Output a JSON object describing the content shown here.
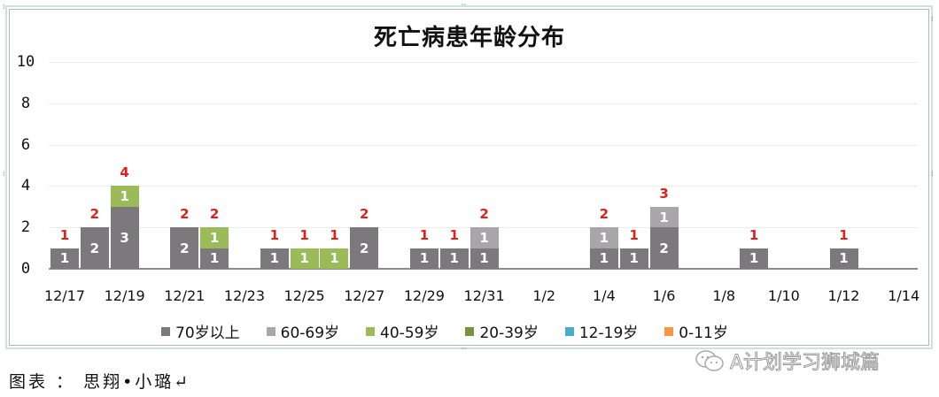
{
  "chart_data": {
    "type": "bar",
    "stacked": true,
    "title": "死亡病患年龄分布",
    "xlabel": "",
    "ylabel": "",
    "ylim": [
      0,
      10
    ],
    "yticks": [
      0,
      2,
      4,
      6,
      8,
      10
    ],
    "grid": true,
    "legend_position": "bottom",
    "categories": [
      "12/17",
      "12/18",
      "12/19",
      "12/20",
      "12/21",
      "12/22",
      "12/23",
      "12/24",
      "12/25",
      "12/26",
      "12/27",
      "12/28",
      "12/29",
      "12/30",
      "12/31",
      "1/1",
      "1/2",
      "1/3",
      "1/4",
      "1/5",
      "1/6",
      "1/7",
      "1/8",
      "1/9",
      "1/10",
      "1/11",
      "1/12",
      "1/13",
      "1/14"
    ],
    "xtick_labels": [
      "12/17",
      "12/19",
      "12/21",
      "12/23",
      "12/25",
      "12/27",
      "12/29",
      "12/31",
      "1/2",
      "1/4",
      "1/6",
      "1/8",
      "1/10",
      "1/12",
      "1/14"
    ],
    "series": [
      {
        "name": "70岁以上",
        "color": "#7b797c",
        "values": [
          1,
          2,
          3,
          0,
          2,
          1,
          0,
          1,
          0,
          0,
          2,
          0,
          1,
          1,
          1,
          0,
          0,
          0,
          1,
          1,
          2,
          0,
          0,
          1,
          0,
          0,
          1,
          0,
          0
        ]
      },
      {
        "name": "60-69岁",
        "color": "#a8a6a9",
        "values": [
          0,
          0,
          0,
          0,
          0,
          0,
          0,
          0,
          0,
          0,
          0,
          0,
          0,
          0,
          1,
          0,
          0,
          0,
          1,
          0,
          1,
          0,
          0,
          0,
          0,
          0,
          0,
          0,
          0
        ]
      },
      {
        "name": "40-59岁",
        "color": "#9bbb59",
        "values": [
          0,
          0,
          1,
          0,
          0,
          1,
          0,
          0,
          1,
          1,
          0,
          0,
          0,
          0,
          0,
          0,
          0,
          0,
          0,
          0,
          0,
          0,
          0,
          0,
          0,
          0,
          0,
          0,
          0
        ]
      },
      {
        "name": "20-39岁",
        "color": "#77933c",
        "values": [
          0,
          0,
          0,
          0,
          0,
          0,
          0,
          0,
          0,
          0,
          0,
          0,
          0,
          0,
          0,
          0,
          0,
          0,
          0,
          0,
          0,
          0,
          0,
          0,
          0,
          0,
          0,
          0,
          0
        ]
      },
      {
        "name": "12-19岁",
        "color": "#4bacc6",
        "values": [
          0,
          0,
          0,
          0,
          0,
          0,
          0,
          0,
          0,
          0,
          0,
          0,
          0,
          0,
          0,
          0,
          0,
          0,
          0,
          0,
          0,
          0,
          0,
          0,
          0,
          0,
          0,
          0,
          0
        ]
      },
      {
        "name": "0-11岁",
        "color": "#f79646",
        "values": [
          0,
          0,
          0,
          0,
          0,
          0,
          0,
          0,
          0,
          0,
          0,
          0,
          0,
          0,
          0,
          0,
          0,
          0,
          0,
          0,
          0,
          0,
          0,
          0,
          0,
          0,
          0,
          0,
          0
        ]
      }
    ],
    "totals": [
      1,
      2,
      4,
      0,
      2,
      2,
      0,
      1,
      1,
      1,
      2,
      0,
      1,
      1,
      2,
      0,
      0,
      0,
      2,
      1,
      3,
      0,
      0,
      1,
      0,
      0,
      1,
      0,
      0
    ],
    "total_label_color": "#e0201b"
  },
  "caption": "图表 ： 思翔•小璐↵",
  "watermark": "A计划学习狮城篇"
}
